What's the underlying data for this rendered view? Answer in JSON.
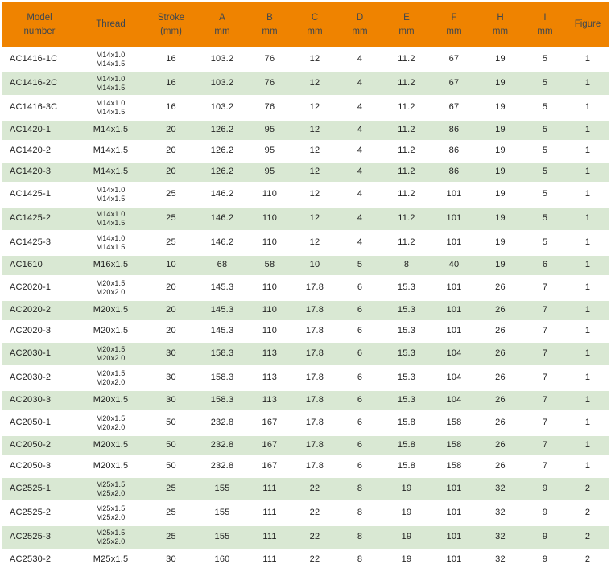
{
  "colors": {
    "header_bg": "#EF8300",
    "header_text": "#3C4650",
    "body_text": "#222222",
    "row_alt_bg": "#D9E8D3",
    "divider": "#FFFFFF"
  },
  "table": {
    "columns": [
      {
        "id": "model",
        "label": [
          "Model",
          "number"
        ]
      },
      {
        "id": "thread",
        "label": [
          "Thread"
        ]
      },
      {
        "id": "stroke",
        "label": [
          "Stroke",
          "(mm)"
        ]
      },
      {
        "id": "a",
        "label": [
          "A",
          "mm"
        ]
      },
      {
        "id": "b",
        "label": [
          "B",
          "mm"
        ]
      },
      {
        "id": "c",
        "label": [
          "C",
          "mm"
        ]
      },
      {
        "id": "d",
        "label": [
          "D",
          "mm"
        ]
      },
      {
        "id": "e",
        "label": [
          "E",
          "mm"
        ]
      },
      {
        "id": "f",
        "label": [
          "F",
          "mm"
        ]
      },
      {
        "id": "h",
        "label": [
          "H",
          "mm"
        ]
      },
      {
        "id": "i",
        "label": [
          "I",
          "mm"
        ]
      },
      {
        "id": "figure",
        "label": [
          "Figure"
        ]
      }
    ],
    "rows": [
      {
        "model": "AC1416-1C",
        "thread": [
          "M14x1.0",
          "M14x1.5"
        ],
        "stroke": "16",
        "a": "103.2",
        "b": "76",
        "c": "12",
        "d": "4",
        "e": "11.2",
        "f": "67",
        "h": "19",
        "i": "5",
        "figure": "1"
      },
      {
        "model": "AC1416-2C",
        "thread": [
          "M14x1.0",
          "M14x1.5"
        ],
        "stroke": "16",
        "a": "103.2",
        "b": "76",
        "c": "12",
        "d": "4",
        "e": "11.2",
        "f": "67",
        "h": "19",
        "i": "5",
        "figure": "1"
      },
      {
        "model": "AC1416-3C",
        "thread": [
          "M14x1.0",
          "M14x1.5"
        ],
        "stroke": "16",
        "a": "103.2",
        "b": "76",
        "c": "12",
        "d": "4",
        "e": "11.2",
        "f": "67",
        "h": "19",
        "i": "5",
        "figure": "1"
      },
      {
        "model": "AC1420-1",
        "thread": "M14x1.5",
        "stroke": "20",
        "a": "126.2",
        "b": "95",
        "c": "12",
        "d": "4",
        "e": "11.2",
        "f": "86",
        "h": "19",
        "i": "5",
        "figure": "1"
      },
      {
        "model": "AC1420-2",
        "thread": "M14x1.5",
        "stroke": "20",
        "a": "126.2",
        "b": "95",
        "c": "12",
        "d": "4",
        "e": "11.2",
        "f": "86",
        "h": "19",
        "i": "5",
        "figure": "1"
      },
      {
        "model": "AC1420-3",
        "thread": "M14x1.5",
        "stroke": "20",
        "a": "126.2",
        "b": "95",
        "c": "12",
        "d": "4",
        "e": "11.2",
        "f": "86",
        "h": "19",
        "i": "5",
        "figure": "1"
      },
      {
        "model": "AC1425-1",
        "thread": [
          "M14x1.0",
          "M14x1.5"
        ],
        "stroke": "25",
        "a": "146.2",
        "b": "110",
        "c": "12",
        "d": "4",
        "e": "11.2",
        "f": "101",
        "h": "19",
        "i": "5",
        "figure": "1"
      },
      {
        "model": "AC1425-2",
        "thread": [
          "M14x1.0",
          "M14x1.5"
        ],
        "stroke": "25",
        "a": "146.2",
        "b": "110",
        "c": "12",
        "d": "4",
        "e": "11.2",
        "f": "101",
        "h": "19",
        "i": "5",
        "figure": "1"
      },
      {
        "model": "AC1425-3",
        "thread": [
          "M14x1.0",
          "M14x1.5"
        ],
        "stroke": "25",
        "a": "146.2",
        "b": "110",
        "c": "12",
        "d": "4",
        "e": "11.2",
        "f": "101",
        "h": "19",
        "i": "5",
        "figure": "1"
      },
      {
        "model": "AC1610",
        "thread": "M16x1.5",
        "stroke": "10",
        "a": "68",
        "b": "58",
        "c": "10",
        "d": "5",
        "e": "8",
        "f": "40",
        "h": "19",
        "i": "6",
        "figure": "1"
      },
      {
        "model": "AC2020-1",
        "thread": [
          "M20x1.5",
          "M20x2.0"
        ],
        "stroke": "20",
        "a": "145.3",
        "b": "110",
        "c": "17.8",
        "d": "6",
        "e": "15.3",
        "f": "101",
        "h": "26",
        "i": "7",
        "figure": "1"
      },
      {
        "model": "AC2020-2",
        "thread": "M20x1.5",
        "stroke": "20",
        "a": "145.3",
        "b": "110",
        "c": "17.8",
        "d": "6",
        "e": "15.3",
        "f": "101",
        "h": "26",
        "i": "7",
        "figure": "1"
      },
      {
        "model": "AC2020-3",
        "thread": "M20x1.5",
        "stroke": "20",
        "a": "145.3",
        "b": "110",
        "c": "17.8",
        "d": "6",
        "e": "15.3",
        "f": "101",
        "h": "26",
        "i": "7",
        "figure": "1"
      },
      {
        "model": "AC2030-1",
        "thread": [
          "M20x1.5",
          "M20x2.0"
        ],
        "stroke": "30",
        "a": "158.3",
        "b": "113",
        "c": "17.8",
        "d": "6",
        "e": "15.3",
        "f": "104",
        "h": "26",
        "i": "7",
        "figure": "1"
      },
      {
        "model": "AC2030-2",
        "thread": [
          "M20x1.5",
          "M20x2.0"
        ],
        "stroke": "30",
        "a": "158.3",
        "b": "113",
        "c": "17.8",
        "d": "6",
        "e": "15.3",
        "f": "104",
        "h": "26",
        "i": "7",
        "figure": "1"
      },
      {
        "model": "AC2030-3",
        "thread": "M20x1.5",
        "stroke": "30",
        "a": "158.3",
        "b": "113",
        "c": "17.8",
        "d": "6",
        "e": "15.3",
        "f": "104",
        "h": "26",
        "i": "7",
        "figure": "1"
      },
      {
        "model": "AC2050-1",
        "thread": [
          "M20x1.5",
          "M20x2.0"
        ],
        "stroke": "50",
        "a": "232.8",
        "b": "167",
        "c": "17.8",
        "d": "6",
        "e": "15.8",
        "f": "158",
        "h": "26",
        "i": "7",
        "figure": "1"
      },
      {
        "model": "AC2050-2",
        "thread": "M20x1.5",
        "stroke": "50",
        "a": "232.8",
        "b": "167",
        "c": "17.8",
        "d": "6",
        "e": "15.8",
        "f": "158",
        "h": "26",
        "i": "7",
        "figure": "1"
      },
      {
        "model": "AC2050-3",
        "thread": "M20x1.5",
        "stroke": "50",
        "a": "232.8",
        "b": "167",
        "c": "17.8",
        "d": "6",
        "e": "15.8",
        "f": "158",
        "h": "26",
        "i": "7",
        "figure": "1"
      },
      {
        "model": "AC2525-1",
        "thread": [
          "M25x1.5",
          "M25x2.0"
        ],
        "stroke": "25",
        "a": "155",
        "b": "111",
        "c": "22",
        "d": "8",
        "e": "19",
        "f": "101",
        "h": "32",
        "i": "9",
        "figure": "2"
      },
      {
        "model": "AC2525-2",
        "thread": [
          "M25x1.5",
          "M25x2.0"
        ],
        "stroke": "25",
        "a": "155",
        "b": "111",
        "c": "22",
        "d": "8",
        "e": "19",
        "f": "101",
        "h": "32",
        "i": "9",
        "figure": "2"
      },
      {
        "model": "AC2525-3",
        "thread": [
          "M25x1.5",
          "M25x2.0"
        ],
        "stroke": "25",
        "a": "155",
        "b": "111",
        "c": "22",
        "d": "8",
        "e": "19",
        "f": "101",
        "h": "32",
        "i": "9",
        "figure": "2"
      },
      {
        "model": "AC2530-2",
        "thread": "M25x1.5",
        "stroke": "30",
        "a": "160",
        "b": "111",
        "c": "22",
        "d": "8",
        "e": "19",
        "f": "101",
        "h": "32",
        "i": "9",
        "figure": "2"
      }
    ]
  }
}
